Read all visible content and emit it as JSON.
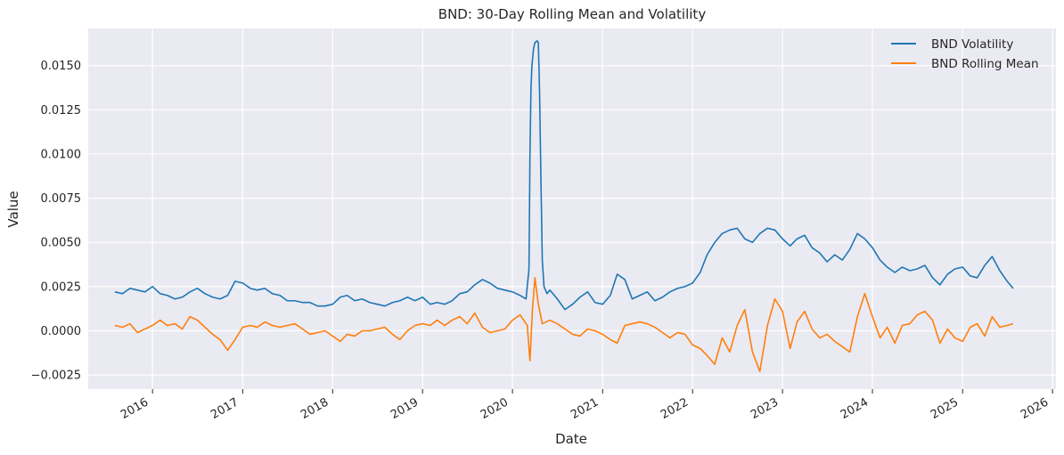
{
  "chart_data": {
    "type": "line",
    "title": "BND: 30-Day Rolling Mean and Volatility",
    "xlabel": "Date",
    "ylabel": "Value",
    "x_ticks": [
      "2016",
      "2017",
      "2018",
      "2019",
      "2020",
      "2021",
      "2022",
      "2023",
      "2024",
      "2025",
      "2026"
    ],
    "y_ticks": [
      "−0.0025",
      "0.0000",
      "0.0025",
      "0.0050",
      "0.0075",
      "0.0100",
      "0.0125",
      "0.0150"
    ],
    "xlim": [
      "2015-04-15",
      "2026-01-15"
    ],
    "ylim": [
      -0.0033,
      0.0171
    ],
    "grid": true,
    "legend_position": "top-right",
    "series": [
      {
        "name": "BND Volatility",
        "color": "#1f77b4",
        "points": [
          [
            "2015-08-01",
            0.0022
          ],
          [
            "2015-09-01",
            0.0021
          ],
          [
            "2015-10-01",
            0.0024
          ],
          [
            "2015-11-01",
            0.0023
          ],
          [
            "2015-12-01",
            0.0022
          ],
          [
            "2016-01-01",
            0.0025
          ],
          [
            "2016-02-01",
            0.0021
          ],
          [
            "2016-03-01",
            0.002
          ],
          [
            "2016-04-01",
            0.0018
          ],
          [
            "2016-05-01",
            0.0019
          ],
          [
            "2016-06-01",
            0.0022
          ],
          [
            "2016-07-01",
            0.0024
          ],
          [
            "2016-08-01",
            0.0021
          ],
          [
            "2016-09-01",
            0.0019
          ],
          [
            "2016-10-01",
            0.0018
          ],
          [
            "2016-11-01",
            0.002
          ],
          [
            "2016-12-01",
            0.0028
          ],
          [
            "2017-01-01",
            0.0027
          ],
          [
            "2017-02-01",
            0.0024
          ],
          [
            "2017-03-01",
            0.0023
          ],
          [
            "2017-04-01",
            0.0024
          ],
          [
            "2017-05-01",
            0.0021
          ],
          [
            "2017-06-01",
            0.002
          ],
          [
            "2017-07-01",
            0.0017
          ],
          [
            "2017-08-01",
            0.0017
          ],
          [
            "2017-09-01",
            0.0016
          ],
          [
            "2017-10-01",
            0.0016
          ],
          [
            "2017-11-01",
            0.0014
          ],
          [
            "2017-12-01",
            0.0014
          ],
          [
            "2018-01-01",
            0.0015
          ],
          [
            "2018-02-01",
            0.0019
          ],
          [
            "2018-03-01",
            0.002
          ],
          [
            "2018-04-01",
            0.0017
          ],
          [
            "2018-05-01",
            0.0018
          ],
          [
            "2018-06-01",
            0.0016
          ],
          [
            "2018-07-01",
            0.0015
          ],
          [
            "2018-08-01",
            0.0014
          ],
          [
            "2018-09-01",
            0.0016
          ],
          [
            "2018-10-01",
            0.0017
          ],
          [
            "2018-11-01",
            0.0019
          ],
          [
            "2018-12-01",
            0.0017
          ],
          [
            "2019-01-01",
            0.0019
          ],
          [
            "2019-02-01",
            0.0015
          ],
          [
            "2019-03-01",
            0.0016
          ],
          [
            "2019-04-01",
            0.0015
          ],
          [
            "2019-05-01",
            0.0017
          ],
          [
            "2019-06-01",
            0.0021
          ],
          [
            "2019-07-01",
            0.0022
          ],
          [
            "2019-08-01",
            0.0026
          ],
          [
            "2019-09-01",
            0.0029
          ],
          [
            "2019-10-01",
            0.0027
          ],
          [
            "2019-11-01",
            0.0024
          ],
          [
            "2019-12-01",
            0.0023
          ],
          [
            "2020-01-01",
            0.0022
          ],
          [
            "2020-02-01",
            0.002
          ],
          [
            "2020-02-25",
            0.0018
          ],
          [
            "2020-03-08",
            0.0035
          ],
          [
            "2020-03-12",
            0.01
          ],
          [
            "2020-03-16",
            0.0137
          ],
          [
            "2020-03-20",
            0.015
          ],
          [
            "2020-03-26",
            0.0159
          ],
          [
            "2020-04-01",
            0.0163
          ],
          [
            "2020-04-10",
            0.0164
          ],
          [
            "2020-04-15",
            0.0163
          ],
          [
            "2020-04-20",
            0.0135
          ],
          [
            "2020-04-25",
            0.009
          ],
          [
            "2020-05-01",
            0.004
          ],
          [
            "2020-05-08",
            0.0025
          ],
          [
            "2020-05-20",
            0.0021
          ],
          [
            "2020-06-01",
            0.0023
          ],
          [
            "2020-07-01",
            0.0018
          ],
          [
            "2020-08-01",
            0.0012
          ],
          [
            "2020-09-01",
            0.0015
          ],
          [
            "2020-10-01",
            0.0019
          ],
          [
            "2020-11-01",
            0.0022
          ],
          [
            "2020-12-01",
            0.0016
          ],
          [
            "2021-01-01",
            0.0015
          ],
          [
            "2021-02-01",
            0.002
          ],
          [
            "2021-03-01",
            0.0032
          ],
          [
            "2021-04-01",
            0.0029
          ],
          [
            "2021-05-01",
            0.0018
          ],
          [
            "2021-06-01",
            0.002
          ],
          [
            "2021-07-01",
            0.0022
          ],
          [
            "2021-08-01",
            0.0017
          ],
          [
            "2021-09-01",
            0.0019
          ],
          [
            "2021-10-01",
            0.0022
          ],
          [
            "2021-11-01",
            0.0024
          ],
          [
            "2021-12-01",
            0.0025
          ],
          [
            "2022-01-01",
            0.0027
          ],
          [
            "2022-02-01",
            0.0033
          ],
          [
            "2022-03-01",
            0.0043
          ],
          [
            "2022-04-01",
            0.005
          ],
          [
            "2022-05-01",
            0.0055
          ],
          [
            "2022-06-01",
            0.0057
          ],
          [
            "2022-07-01",
            0.0058
          ],
          [
            "2022-08-01",
            0.0052
          ],
          [
            "2022-09-01",
            0.005
          ],
          [
            "2022-10-01",
            0.0055
          ],
          [
            "2022-11-01",
            0.0058
          ],
          [
            "2022-12-01",
            0.0057
          ],
          [
            "2023-01-01",
            0.0052
          ],
          [
            "2023-02-01",
            0.0048
          ],
          [
            "2023-03-01",
            0.0052
          ],
          [
            "2023-04-01",
            0.0054
          ],
          [
            "2023-05-01",
            0.0047
          ],
          [
            "2023-06-01",
            0.0044
          ],
          [
            "2023-07-01",
            0.0039
          ],
          [
            "2023-08-01",
            0.0043
          ],
          [
            "2023-09-01",
            0.004
          ],
          [
            "2023-10-01",
            0.0046
          ],
          [
            "2023-11-01",
            0.0055
          ],
          [
            "2023-12-01",
            0.0052
          ],
          [
            "2024-01-01",
            0.0047
          ],
          [
            "2024-02-01",
            0.004
          ],
          [
            "2024-03-01",
            0.0036
          ],
          [
            "2024-04-01",
            0.0033
          ],
          [
            "2024-05-01",
            0.0036
          ],
          [
            "2024-06-01",
            0.0034
          ],
          [
            "2024-07-01",
            0.0035
          ],
          [
            "2024-08-01",
            0.0037
          ],
          [
            "2024-09-01",
            0.003
          ],
          [
            "2024-10-01",
            0.0026
          ],
          [
            "2024-11-01",
            0.0032
          ],
          [
            "2024-12-01",
            0.0035
          ],
          [
            "2025-01-01",
            0.0036
          ],
          [
            "2025-02-01",
            0.0031
          ],
          [
            "2025-03-01",
            0.003
          ],
          [
            "2025-04-01",
            0.0037
          ],
          [
            "2025-05-01",
            0.0042
          ],
          [
            "2025-06-01",
            0.0034
          ],
          [
            "2025-07-01",
            0.0028
          ],
          [
            "2025-07-25",
            0.0024
          ]
        ]
      },
      {
        "name": "BND Rolling Mean",
        "color": "#ff7f0e",
        "points": [
          [
            "2015-08-01",
            0.0003
          ],
          [
            "2015-09-01",
            0.0002
          ],
          [
            "2015-10-01",
            0.0004
          ],
          [
            "2015-11-01",
            -0.0001
          ],
          [
            "2015-12-01",
            0.0001
          ],
          [
            "2016-01-01",
            0.0003
          ],
          [
            "2016-02-01",
            0.0006
          ],
          [
            "2016-03-01",
            0.0003
          ],
          [
            "2016-04-01",
            0.0004
          ],
          [
            "2016-05-01",
            0.0001
          ],
          [
            "2016-06-01",
            0.0008
          ],
          [
            "2016-07-01",
            0.0006
          ],
          [
            "2016-08-01",
            0.0002
          ],
          [
            "2016-09-01",
            -0.0002
          ],
          [
            "2016-10-01",
            -0.0005
          ],
          [
            "2016-11-01",
            -0.0011
          ],
          [
            "2016-12-01",
            -0.0005
          ],
          [
            "2017-01-01",
            0.0002
          ],
          [
            "2017-02-01",
            0.0003
          ],
          [
            "2017-03-01",
            0.0002
          ],
          [
            "2017-04-01",
            0.0005
          ],
          [
            "2017-05-01",
            0.0003
          ],
          [
            "2017-06-01",
            0.0002
          ],
          [
            "2017-07-01",
            0.0003
          ],
          [
            "2017-08-01",
            0.0004
          ],
          [
            "2017-09-01",
            0.0001
          ],
          [
            "2017-10-01",
            -0.0002
          ],
          [
            "2017-11-01",
            -0.0001
          ],
          [
            "2017-12-01",
            0.0
          ],
          [
            "2018-01-01",
            -0.0003
          ],
          [
            "2018-02-01",
            -0.0006
          ],
          [
            "2018-03-01",
            -0.0002
          ],
          [
            "2018-04-01",
            -0.0003
          ],
          [
            "2018-05-01",
            0.0
          ],
          [
            "2018-06-01",
            0.0
          ],
          [
            "2018-07-01",
            0.0001
          ],
          [
            "2018-08-01",
            0.0002
          ],
          [
            "2018-09-01",
            -0.0002
          ],
          [
            "2018-10-01",
            -0.0005
          ],
          [
            "2018-11-01",
            0.0
          ],
          [
            "2018-12-01",
            0.0003
          ],
          [
            "2019-01-01",
            0.0004
          ],
          [
            "2019-02-01",
            0.0003
          ],
          [
            "2019-03-01",
            0.0006
          ],
          [
            "2019-04-01",
            0.0003
          ],
          [
            "2019-05-01",
            0.0006
          ],
          [
            "2019-06-01",
            0.0008
          ],
          [
            "2019-07-01",
            0.0004
          ],
          [
            "2019-08-01",
            0.001
          ],
          [
            "2019-09-01",
            0.0002
          ],
          [
            "2019-10-01",
            -0.0001
          ],
          [
            "2019-11-01",
            0.0
          ],
          [
            "2019-12-01",
            0.0001
          ],
          [
            "2020-01-01",
            0.0006
          ],
          [
            "2020-02-01",
            0.0009
          ],
          [
            "2020-03-01",
            0.0003
          ],
          [
            "2020-03-12",
            -0.0017
          ],
          [
            "2020-03-22",
            0.0012
          ],
          [
            "2020-04-01",
            0.003
          ],
          [
            "2020-04-15",
            0.0015
          ],
          [
            "2020-05-01",
            0.0004
          ],
          [
            "2020-06-01",
            0.0006
          ],
          [
            "2020-07-01",
            0.0004
          ],
          [
            "2020-08-01",
            0.0001
          ],
          [
            "2020-09-01",
            -0.0002
          ],
          [
            "2020-10-01",
            -0.0003
          ],
          [
            "2020-11-01",
            0.0001
          ],
          [
            "2020-12-01",
            0.0
          ],
          [
            "2021-01-01",
            -0.0002
          ],
          [
            "2021-02-01",
            -0.0005
          ],
          [
            "2021-03-01",
            -0.0007
          ],
          [
            "2021-04-01",
            0.0003
          ],
          [
            "2021-05-01",
            0.0004
          ],
          [
            "2021-06-01",
            0.0005
          ],
          [
            "2021-07-01",
            0.0004
          ],
          [
            "2021-08-01",
            0.0002
          ],
          [
            "2021-09-01",
            -0.0001
          ],
          [
            "2021-10-01",
            -0.0004
          ],
          [
            "2021-11-01",
            -0.0001
          ],
          [
            "2021-12-01",
            -0.0002
          ],
          [
            "2022-01-01",
            -0.0008
          ],
          [
            "2022-02-01",
            -0.001
          ],
          [
            "2022-03-01",
            -0.0014
          ],
          [
            "2022-04-01",
            -0.0019
          ],
          [
            "2022-05-01",
            -0.0004
          ],
          [
            "2022-06-01",
            -0.0012
          ],
          [
            "2022-07-01",
            0.0003
          ],
          [
            "2022-08-01",
            0.0012
          ],
          [
            "2022-09-01",
            -0.0012
          ],
          [
            "2022-10-01",
            -0.0023
          ],
          [
            "2022-11-01",
            0.0003
          ],
          [
            "2022-12-01",
            0.0018
          ],
          [
            "2023-01-01",
            0.0011
          ],
          [
            "2023-02-01",
            -0.001
          ],
          [
            "2023-03-01",
            0.0005
          ],
          [
            "2023-04-01",
            0.0011
          ],
          [
            "2023-05-01",
            0.0001
          ],
          [
            "2023-06-01",
            -0.0004
          ],
          [
            "2023-07-01",
            -0.0002
          ],
          [
            "2023-08-01",
            -0.0006
          ],
          [
            "2023-09-01",
            -0.0009
          ],
          [
            "2023-10-01",
            -0.0012
          ],
          [
            "2023-11-01",
            0.0008
          ],
          [
            "2023-12-01",
            0.0021
          ],
          [
            "2024-01-01",
            0.0008
          ],
          [
            "2024-02-01",
            -0.0004
          ],
          [
            "2024-03-01",
            0.0002
          ],
          [
            "2024-04-01",
            -0.0007
          ],
          [
            "2024-05-01",
            0.0003
          ],
          [
            "2024-06-01",
            0.0004
          ],
          [
            "2024-07-01",
            0.0009
          ],
          [
            "2024-08-01",
            0.0011
          ],
          [
            "2024-09-01",
            0.0006
          ],
          [
            "2024-10-01",
            -0.0007
          ],
          [
            "2024-11-01",
            0.0001
          ],
          [
            "2024-12-01",
            -0.0004
          ],
          [
            "2025-01-01",
            -0.0006
          ],
          [
            "2025-02-01",
            0.0002
          ],
          [
            "2025-03-01",
            0.0004
          ],
          [
            "2025-04-01",
            -0.0003
          ],
          [
            "2025-05-01",
            0.0008
          ],
          [
            "2025-06-01",
            0.0002
          ],
          [
            "2025-07-01",
            0.0003
          ],
          [
            "2025-07-25",
            0.0004
          ]
        ]
      }
    ]
  }
}
